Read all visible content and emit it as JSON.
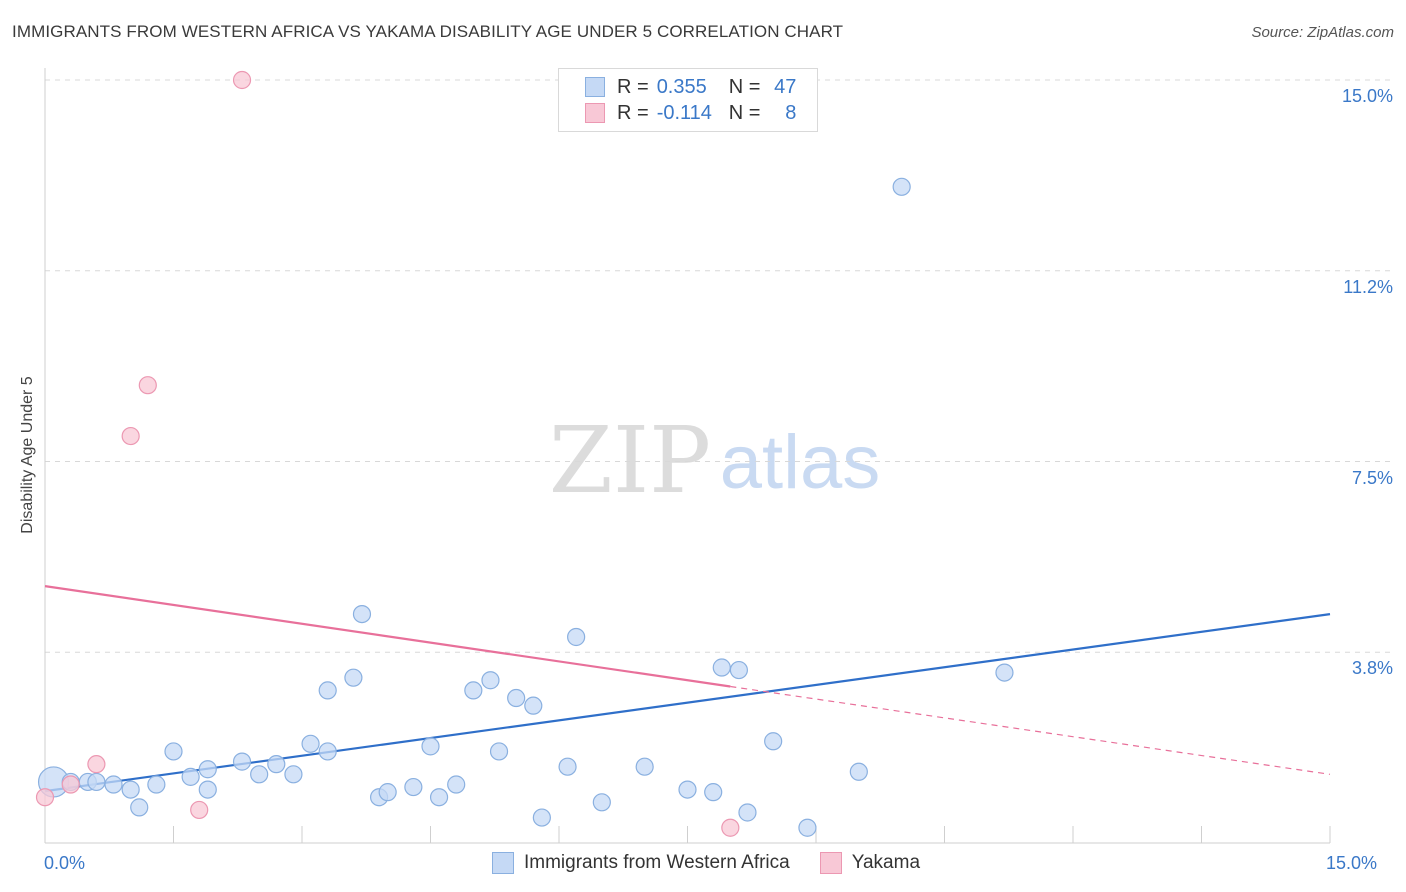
{
  "title": "IMMIGRANTS FROM WESTERN AFRICA VS YAKAMA DISABILITY AGE UNDER 5 CORRELATION CHART",
  "source": "Source: ZipAtlas.com",
  "watermark": {
    "zip": "ZIP",
    "atlas": "atlas"
  },
  "legend": {
    "series1": {
      "r_label": "R =",
      "r_value": "0.355",
      "n_label": "N =",
      "n_value": "47"
    },
    "series2": {
      "r_label": "R =",
      "r_value": "-0.114",
      "n_label": "N =",
      "n_value": "8"
    }
  },
  "bottom_legend": {
    "series1": "Immigrants from Western Africa",
    "series2": "Yakama"
  },
  "axis": {
    "ylabel": "Disability Age Under 5",
    "x_min_label": "0.0%",
    "x_max_label": "15.0%",
    "y_tick_labels": [
      "3.8%",
      "7.5%",
      "11.2%",
      "15.0%"
    ]
  },
  "colors": {
    "blue_fill": "#c5d9f5",
    "blue_stroke": "#8ab0e0",
    "blue_line": "#2f6fc9",
    "pink_fill": "#f8c8d6",
    "pink_stroke": "#ec98b2",
    "pink_line": "#e8709a",
    "grid": "#d8d8d8",
    "tick_text": "#3a78c8"
  },
  "chart_data": {
    "type": "scatter",
    "x_range": [
      0,
      15
    ],
    "y_range": [
      0,
      15
    ],
    "y_ticks": [
      3.75,
      7.5,
      11.25,
      15.0
    ],
    "grid": "horizontal dashed",
    "legend_position": "top-center",
    "series": [
      {
        "name": "Immigrants from Western Africa",
        "color": "#2f6fc9",
        "points": [
          [
            0.1,
            1.2
          ],
          [
            0.3,
            1.2
          ],
          [
            0.5,
            1.2
          ],
          [
            0.6,
            1.2
          ],
          [
            0.8,
            1.15
          ],
          [
            1.0,
            1.05
          ],
          [
            1.1,
            0.7
          ],
          [
            1.3,
            1.15
          ],
          [
            1.5,
            1.8
          ],
          [
            1.7,
            1.3
          ],
          [
            1.9,
            1.05
          ],
          [
            1.9,
            1.45
          ],
          [
            2.3,
            1.6
          ],
          [
            2.5,
            1.35
          ],
          [
            2.7,
            1.55
          ],
          [
            2.9,
            1.35
          ],
          [
            3.1,
            1.95
          ],
          [
            3.3,
            1.8
          ],
          [
            3.3,
            3.0
          ],
          [
            3.6,
            3.25
          ],
          [
            3.7,
            4.5
          ],
          [
            3.9,
            0.9
          ],
          [
            4.0,
            1.0
          ],
          [
            4.3,
            1.1
          ],
          [
            4.5,
            1.9
          ],
          [
            4.6,
            0.9
          ],
          [
            4.8,
            1.15
          ],
          [
            5.0,
            3.0
          ],
          [
            5.2,
            3.2
          ],
          [
            5.3,
            1.8
          ],
          [
            5.5,
            2.85
          ],
          [
            5.7,
            2.7
          ],
          [
            5.8,
            0.5
          ],
          [
            6.1,
            1.5
          ],
          [
            6.2,
            4.05
          ],
          [
            6.5,
            0.8
          ],
          [
            7.0,
            1.5
          ],
          [
            7.5,
            1.05
          ],
          [
            7.8,
            1.0
          ],
          [
            7.9,
            3.45
          ],
          [
            8.1,
            3.4
          ],
          [
            8.2,
            0.6
          ],
          [
            8.5,
            2.0
          ],
          [
            8.9,
            0.3
          ],
          [
            9.5,
            1.4
          ],
          [
            10.0,
            12.9
          ],
          [
            11.2,
            3.35
          ]
        ],
        "trend": {
          "x": [
            0,
            15
          ],
          "y": [
            1.02,
            4.5
          ]
        }
      },
      {
        "name": "Yakama",
        "color": "#e8709a",
        "points": [
          [
            0.0,
            0.9
          ],
          [
            0.3,
            1.15
          ],
          [
            0.6,
            1.55
          ],
          [
            1.0,
            8.0
          ],
          [
            1.2,
            9.0
          ],
          [
            1.8,
            0.65
          ],
          [
            2.3,
            15.0
          ],
          [
            8.0,
            0.3
          ]
        ],
        "trend": {
          "x": [
            0,
            15
          ],
          "y": [
            5.05,
            1.35
          ],
          "solid_until_x": 8.0
        }
      }
    ]
  }
}
